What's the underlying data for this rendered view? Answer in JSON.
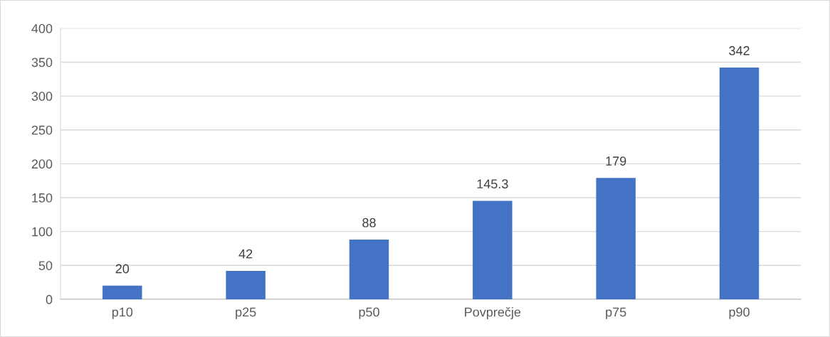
{
  "chart_data": {
    "type": "bar",
    "categories": [
      "p10",
      "p25",
      "p50",
      "Povprečje",
      "p75",
      "p90"
    ],
    "values": [
      20,
      42,
      88,
      145.3,
      179,
      342
    ],
    "color": "#4472c4",
    "ylim": [
      0,
      400
    ],
    "yticks": [
      0,
      50,
      100,
      150,
      200,
      250,
      300,
      350,
      400
    ],
    "grid": "y",
    "data_labels": true
  }
}
